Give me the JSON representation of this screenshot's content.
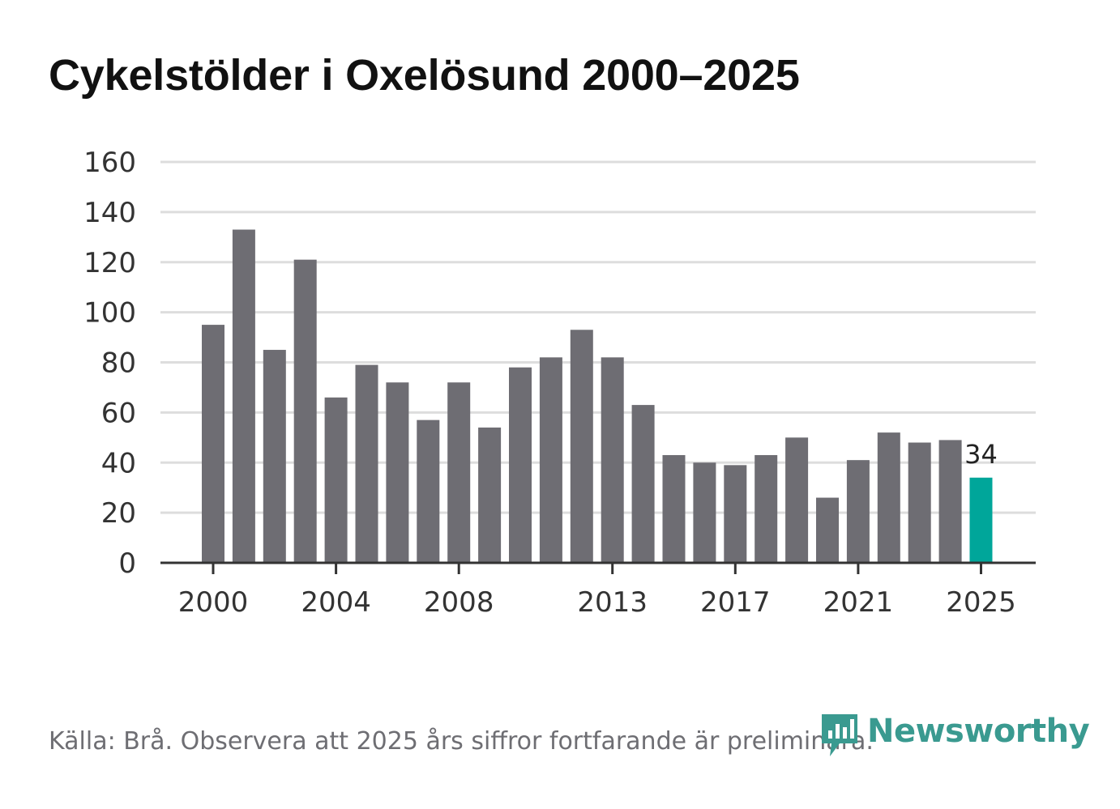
{
  "title": "Cykelstölder i Oxelösund 2000–2025",
  "footer": "Källa: Brå. Observera att 2025 års siffror fortfarande är preliminära.",
  "brand": {
    "name": "Newsworthy",
    "logo_icon": "bar-chart-badge-icon",
    "color": "#3a9a90"
  },
  "colors": {
    "bar": "#6e6d73",
    "highlight": "#00a69a",
    "grid": "#dddddd",
    "axis": "#333333"
  },
  "chart_data": {
    "type": "bar",
    "title": "Cykelstölder i Oxelösund 2000–2025",
    "xlabel": "",
    "ylabel": "",
    "categories": [
      "2000",
      "2001",
      "2002",
      "2003",
      "2004",
      "2005",
      "2006",
      "2007",
      "2008",
      "2009",
      "2010",
      "2011",
      "2012",
      "2013",
      "2014",
      "2015",
      "2016",
      "2017",
      "2018",
      "2019",
      "2020",
      "2021",
      "2022",
      "2023",
      "2024",
      "2025"
    ],
    "values": [
      95,
      133,
      85,
      121,
      66,
      79,
      72,
      57,
      72,
      54,
      78,
      82,
      93,
      82,
      63,
      43,
      40,
      39,
      43,
      50,
      26,
      41,
      52,
      48,
      49,
      34
    ],
    "ylim": [
      0,
      160
    ],
    "yticks": [
      "0",
      "20",
      "40",
      "60",
      "80",
      "100",
      "120",
      "140",
      "160"
    ],
    "xticks": [
      "2000",
      "2004",
      "2008",
      "2013",
      "2017",
      "2021",
      "2025"
    ],
    "highlight_category": "2025",
    "value_label": "34",
    "grid": true
  }
}
